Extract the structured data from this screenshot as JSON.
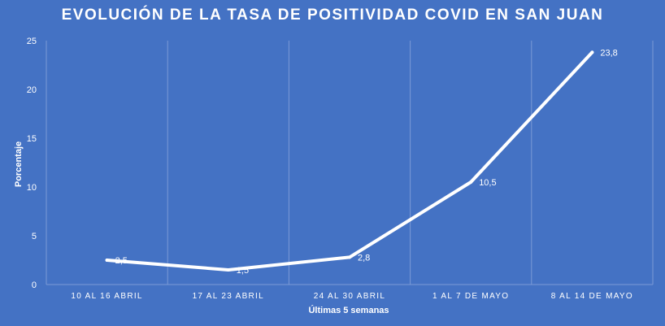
{
  "chart_data": {
    "type": "line",
    "title": "EVOLUCIÓN DE LA TASA DE POSITIVIDAD COVID EN SAN JUAN",
    "xlabel": "Últimas 5 semanas",
    "ylabel": "Porcentaje",
    "categories": [
      "10 AL 16 ABRIL",
      "17 AL 23 ABRIL",
      "24 AL 30 ABRIL",
      "1 AL 7 DE MAYO",
      "8 AL 14 DE MAYO"
    ],
    "series": [
      {
        "values": [
          2.5,
          1.5,
          2.8,
          10.5,
          23.8
        ],
        "data_labels": [
          "2,5",
          "1,5",
          "2,8",
          "10,5",
          "23,8"
        ]
      }
    ],
    "ylim": [
      0,
      25
    ],
    "yticks": [
      0,
      5,
      10,
      15,
      20,
      25
    ],
    "grid": "vertical",
    "legend": "none",
    "colors": {
      "background": "#4472C4",
      "line": "#FFFFFF",
      "grid": "#7B9AD6",
      "text": "#FFFFFF"
    }
  }
}
